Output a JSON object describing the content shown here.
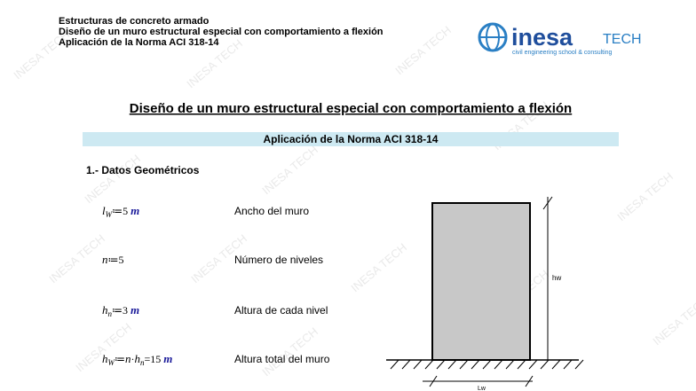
{
  "header": {
    "lines": [
      "Estructuras de concreto armado",
      "Diseño de un muro estructural especial con comportamiento a flexión",
      "Aplicación de la Norma ACI 318-14"
    ]
  },
  "logo": {
    "brand": "inesa",
    "tech": "TECH",
    "tagline": "civil engineering school & consulting"
  },
  "title": "Diseño de un muro estructural especial con comportamiento a flexión",
  "subtitle": "Aplicación de la Norma ACI 318-14",
  "section": "1.- Datos Geométricos",
  "rows": [
    {
      "expr": [
        {
          "text": "l",
          "style": "math"
        },
        {
          "text": "W",
          "style": "sub"
        },
        {
          "text": "≔5 ",
          "style": "plain"
        },
        {
          "text": "m",
          "style": "unit"
        }
      ],
      "desc": "Ancho del muro"
    },
    {
      "expr": [
        {
          "text": "n",
          "style": "math"
        },
        {
          "text": "≔5",
          "style": "plain"
        }
      ],
      "desc": "Número de niveles"
    },
    {
      "expr": [
        {
          "text": "h",
          "style": "math"
        },
        {
          "text": "n",
          "style": "sub"
        },
        {
          "text": "≔3 ",
          "style": "plain"
        },
        {
          "text": "m",
          "style": "unit"
        }
      ],
      "desc": "Altura de cada nivel"
    },
    {
      "expr": [
        {
          "text": "h",
          "style": "math"
        },
        {
          "text": "W",
          "style": "sub"
        },
        {
          "text": "≔",
          "style": "plain"
        },
        {
          "text": "n",
          "style": "math"
        },
        {
          "text": "·",
          "style": "plain"
        },
        {
          "text": "h",
          "style": "math"
        },
        {
          "text": "n",
          "style": "sub"
        },
        {
          "text": "=15 ",
          "style": "plain"
        },
        {
          "text": "m",
          "style": "unit"
        }
      ],
      "desc": "Altura total del muro"
    }
  ],
  "diagram": {
    "height_label": "hw",
    "width_label": "Lw"
  },
  "watermark": "INESA TECH"
}
